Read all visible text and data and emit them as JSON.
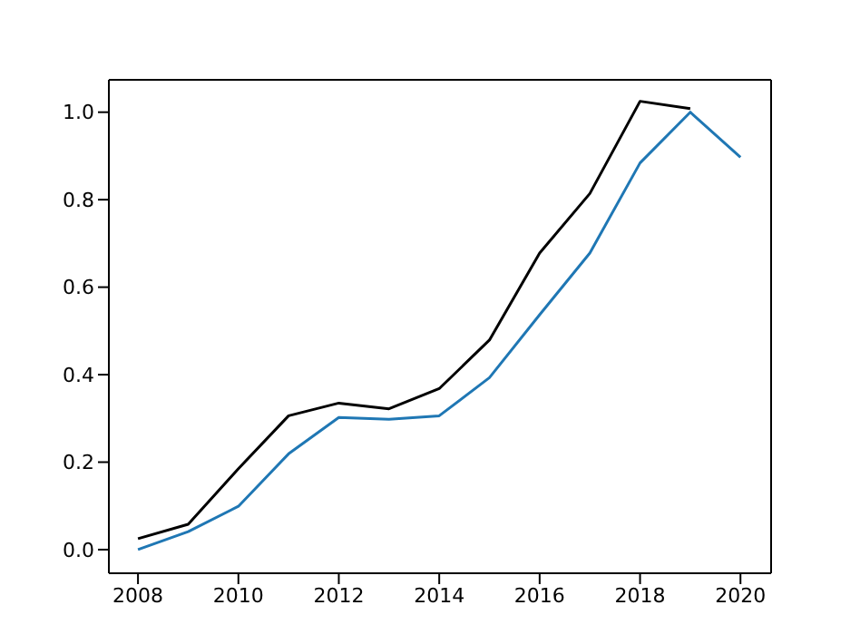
{
  "chart_data": {
    "type": "line",
    "x": [
      2008,
      2009,
      2010,
      2011,
      2012,
      2013,
      2014,
      2015,
      2016,
      2017,
      2018,
      2019,
      2020
    ],
    "series": [
      {
        "color": "#000000",
        "values": [
          0.025,
          0.058,
          0.185,
          0.306,
          0.335,
          0.322,
          0.368,
          0.479,
          0.678,
          0.814,
          1.025,
          1.008,
          null
        ]
      },
      {
        "color": "#1f77b4",
        "values": [
          0.0,
          0.041,
          0.099,
          0.219,
          0.302,
          0.298,
          0.306,
          0.393,
          0.537,
          0.678,
          0.884,
          1.0,
          0.897
        ]
      }
    ],
    "xlim": [
      2007.42,
      2020.61
    ],
    "ylim": [
      -0.054,
      1.074
    ],
    "xticks": [
      2008,
      2010,
      2012,
      2014,
      2016,
      2018,
      2020
    ],
    "yticks": [
      {
        "value": 0,
        "label": "0.0"
      },
      0.2,
      0.4,
      0.6,
      0.8,
      {
        "value": 1,
        "label": "1.0"
      }
    ]
  }
}
